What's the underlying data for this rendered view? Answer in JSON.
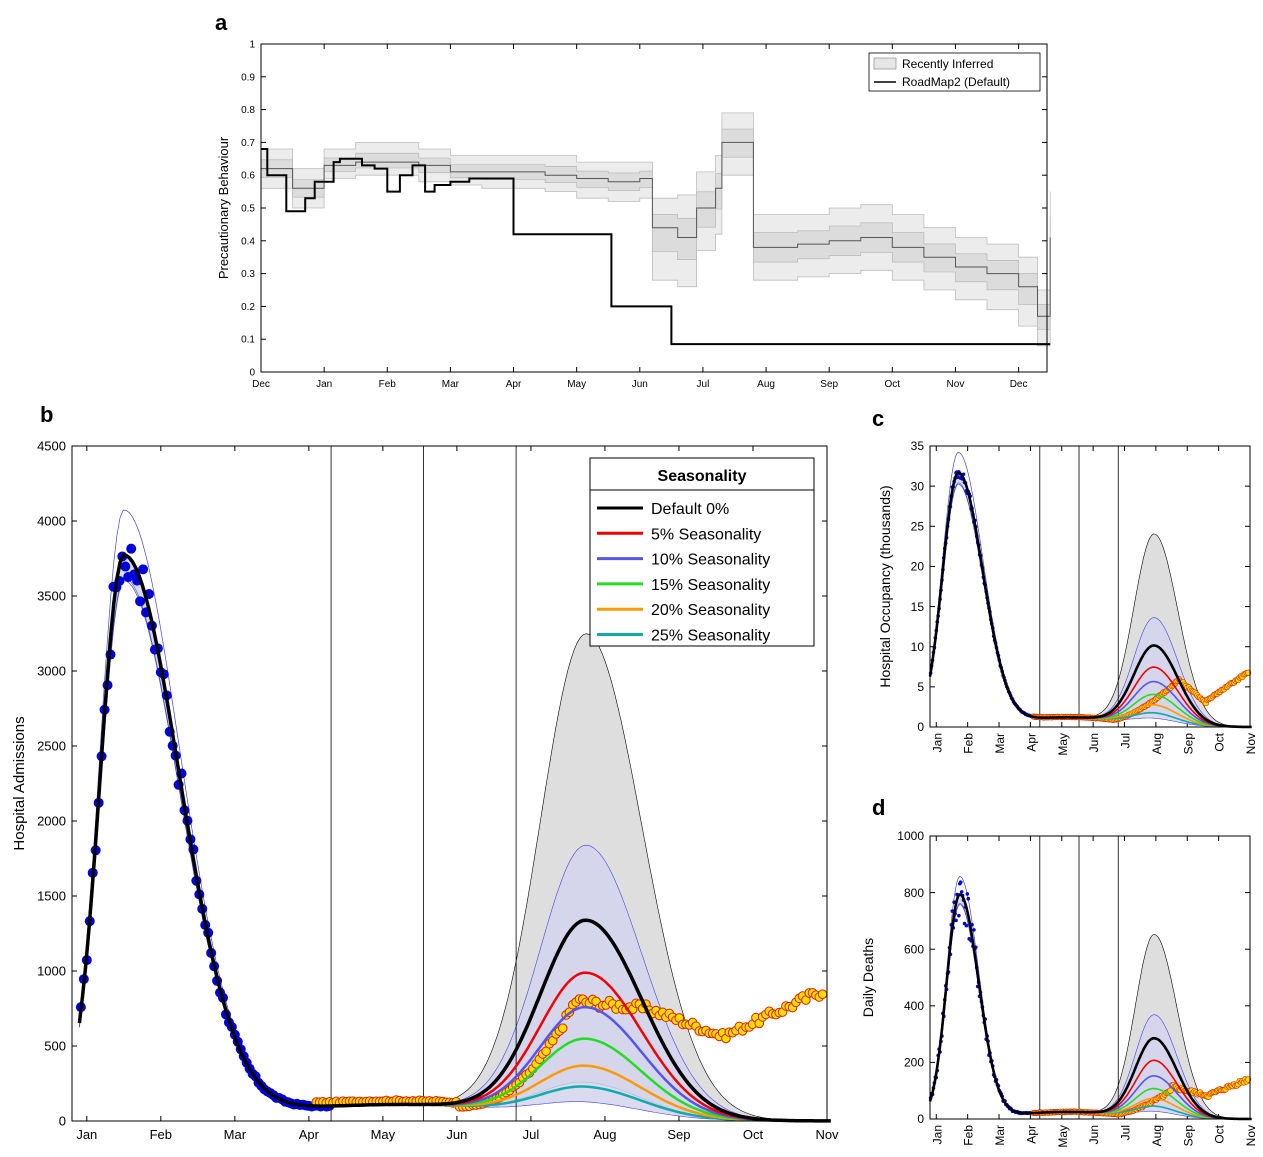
{
  "panels": {
    "a": {
      "letter": "a"
    },
    "b": {
      "letter": "b"
    },
    "c": {
      "letter": "c"
    },
    "d": {
      "letter": "d"
    }
  },
  "colors": {
    "default": "#000000",
    "s5": "#ee0000",
    "s10": "#5555ee",
    "s15": "#22dd22",
    "s20": "#ff9900",
    "s25": "#11aaaa",
    "blue_dots": "#0000dd",
    "yellow_fill": "#ffdd00",
    "yellow_edge": "#dd2200",
    "grey_band": "#d9d9d9",
    "blue_band": "#d6d6ec"
  },
  "chart_data": [
    {
      "id": "a",
      "type": "line",
      "ylabel": "Precautionary Behaviour",
      "ylim": [
        0,
        1
      ],
      "yticks": [
        "0",
        "0.1",
        "0.2",
        "0.3",
        "0.4",
        "0.5",
        "0.6",
        "0.7",
        "0.8",
        "0.9",
        "1"
      ],
      "xticks": [
        "Dec",
        "Jan",
        "Feb",
        "Mar",
        "Apr",
        "May",
        "Jun",
        "Jul",
        "Aug",
        "Sep",
        "Oct",
        "Nov",
        "Dec"
      ],
      "legend": {
        "position": "top-right",
        "entries": [
          "Recently Inferred",
          "RoadMap2 (Default)"
        ]
      },
      "series": [
        {
          "name": "RoadMap2 (Default)",
          "x": [
            0,
            0.1,
            0.1,
            0.4,
            0.4,
            0.7,
            0.7,
            0.85,
            0.85,
            1.15,
            1.15,
            1.25,
            1.25,
            1.6,
            1.6,
            1.8,
            1.8,
            2.0,
            2.0,
            2.2,
            2.2,
            2.4,
            2.4,
            2.6,
            2.6,
            2.75,
            2.75,
            3.0,
            3.0,
            3.3,
            3.3,
            3.7,
            3.7,
            4.0,
            4.0,
            4.4,
            4.4,
            5.55,
            5.55,
            6.5,
            6.5,
            12.5
          ],
          "y": [
            0.68,
            0.68,
            0.6,
            0.6,
            0.49,
            0.49,
            0.53,
            0.53,
            0.58,
            0.58,
            0.64,
            0.64,
            0.65,
            0.65,
            0.63,
            0.63,
            0.62,
            0.62,
            0.55,
            0.55,
            0.6,
            0.6,
            0.63,
            0.63,
            0.55,
            0.55,
            0.57,
            0.57,
            0.58,
            0.58,
            0.59,
            0.59,
            0.59,
            0.59,
            0.42,
            0.42,
            0.42,
            0.42,
            0.2,
            0.2,
            0.085,
            0.085
          ]
        },
        {
          "name": "Recently Inferred",
          "x": [
            0,
            0.5,
            1.0,
            1.5,
            2.0,
            2.5,
            3.0,
            3.5,
            4.0,
            4.5,
            5.0,
            5.5,
            6.0,
            6.2,
            6.6,
            6.9,
            7.2,
            7.3,
            7.6,
            7.8,
            8.0,
            8.5,
            9.0,
            9.5,
            10.0,
            10.5,
            11.0,
            11.5,
            12.0,
            12.3,
            12.5
          ],
          "y": [
            0.62,
            0.56,
            0.63,
            0.64,
            0.64,
            0.63,
            0.61,
            0.61,
            0.61,
            0.6,
            0.59,
            0.58,
            0.59,
            0.44,
            0.41,
            0.5,
            0.56,
            0.7,
            0.7,
            0.38,
            0.38,
            0.39,
            0.4,
            0.41,
            0.38,
            0.35,
            0.32,
            0.3,
            0.26,
            0.17,
            0.41
          ],
          "band": [
            [
              0.56,
              0.68
            ],
            [
              0.5,
              0.62
            ],
            [
              0.59,
              0.68
            ],
            [
              0.6,
              0.7
            ],
            [
              0.6,
              0.7
            ],
            [
              0.58,
              0.68
            ],
            [
              0.57,
              0.66
            ],
            [
              0.56,
              0.66
            ],
            [
              0.56,
              0.66
            ],
            [
              0.55,
              0.66
            ],
            [
              0.53,
              0.64
            ],
            [
              0.52,
              0.64
            ],
            [
              0.53,
              0.64
            ],
            [
              0.28,
              0.53
            ],
            [
              0.26,
              0.54
            ],
            [
              0.37,
              0.61
            ],
            [
              0.42,
              0.66
            ],
            [
              0.6,
              0.79
            ],
            [
              0.6,
              0.79
            ],
            [
              0.28,
              0.48
            ],
            [
              0.28,
              0.48
            ],
            [
              0.29,
              0.48
            ],
            [
              0.3,
              0.5
            ],
            [
              0.31,
              0.51
            ],
            [
              0.28,
              0.48
            ],
            [
              0.25,
              0.44
            ],
            [
              0.22,
              0.41
            ],
            [
              0.19,
              0.39
            ],
            [
              0.14,
              0.35
            ],
            [
              0.08,
              0.25
            ],
            [
              0.27,
              0.55
            ]
          ]
        }
      ]
    },
    {
      "id": "b",
      "type": "line",
      "ylabel": "Hospital Admissions",
      "ylim": [
        0,
        4500
      ],
      "yticks": [
        "0",
        "500",
        "1000",
        "1500",
        "2000",
        "2500",
        "3000",
        "3500",
        "4000",
        "4500"
      ],
      "xticks": [
        "Jan",
        "Feb",
        "Mar",
        "Apr",
        "May",
        "Jun",
        "Jul",
        "Aug",
        "Sep",
        "Oct",
        "Nov"
      ],
      "legend": {
        "title": "Seasonality",
        "position": "top-right",
        "entries": [
          "Default 0%",
          "5% Seasonality",
          "10% Seasonality",
          "15% Seasonality",
          "20% Seasonality",
          "25% Seasonality"
        ]
      },
      "peaks": [
        1300,
        950,
        720,
        510,
        330,
        190
      ],
      "band_peak": [
        220,
        3210
      ],
      "band10_peak": [
        90,
        1800
      ],
      "winter_peak": 3760
    },
    {
      "id": "c",
      "type": "line",
      "ylabel": "Hospital Occupancy (thousands)",
      "ylim": [
        0,
        35
      ],
      "yticks": [
        "0",
        "5",
        "10",
        "15",
        "20",
        "25",
        "30",
        "35"
      ],
      "xticks": [
        "Jan",
        "Feb",
        "Mar",
        "Apr",
        "May",
        "Jun",
        "Jul",
        "Aug",
        "Sep",
        "Oct",
        "Nov"
      ],
      "peaks": [
        9.8,
        7.1,
        5.3,
        3.7,
        2.4,
        1.4
      ],
      "band_peak": [
        1.5,
        23.7
      ],
      "winter_peak": 31.5
    },
    {
      "id": "d",
      "type": "line",
      "ylabel": "Daily Deaths",
      "ylim": [
        0,
        1000
      ],
      "yticks": [
        "0",
        "200",
        "400",
        "600",
        "800",
        "1000"
      ],
      "xticks": [
        "Jan",
        "Feb",
        "Mar",
        "Apr",
        "May",
        "Jun",
        "Jul",
        "Aug",
        "Sep",
        "Oct",
        "Nov"
      ],
      "peaks": [
        278,
        200,
        145,
        100,
        65,
        38
      ],
      "band_peak": [
        40,
        645
      ],
      "winter_peak": 790
    }
  ]
}
